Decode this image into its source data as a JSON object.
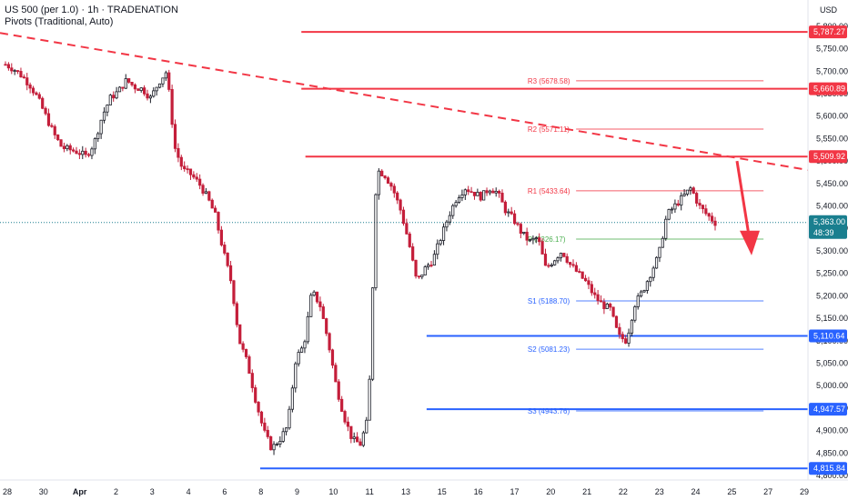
{
  "header": {
    "title": "US 500 (per 1.0) · 1h · TRADENATION",
    "indicator": "Pivots (Traditional, Auto)",
    "currency": "USD"
  },
  "colors": {
    "resistance": "#f23645",
    "support": "#2962ff",
    "pivot": "#4caf50",
    "trendline": "#f23645",
    "arrow": "#f23645",
    "bull": "#1b1d27",
    "bear": "#c41e3a",
    "last_price_label": "#1a7f8f",
    "axis_text": "#131722"
  },
  "chart_data": {
    "type": "candlestick",
    "ylim": [
      4790,
      5830
    ],
    "y_ticks": [
      "5,800.00",
      "5,750.00",
      "5,700.00",
      "5,650.00",
      "5,600.00",
      "5,550.00",
      "5,500.00",
      "5,450.00",
      "5,400.00",
      "5,350.00",
      "5,300.00",
      "5,250.00",
      "5,200.00",
      "5,150.00",
      "5,100.00",
      "5,050.00",
      "5,000.00",
      "4,950.00",
      "4,900.00",
      "4,850.00",
      "4,800.00"
    ],
    "y_tick_values": [
      5800,
      5750,
      5700,
      5650,
      5600,
      5550,
      5500,
      5450,
      5400,
      5350,
      5300,
      5250,
      5200,
      5150,
      5100,
      5050,
      5000,
      4950,
      4900,
      4850,
      4800
    ],
    "x_tick_labels": [
      "28",
      "30",
      "Apr",
      "2",
      "3",
      "4",
      "6",
      "8",
      "9",
      "10",
      "11",
      "13",
      "15",
      "16",
      "17",
      "20",
      "21",
      "22",
      "23",
      "24",
      "25",
      "27",
      "29"
    ],
    "levels": [
      {
        "label": "5,787.27",
        "value": 5787.27,
        "kind": "resistance"
      },
      {
        "label": "5,660.89",
        "value": 5660.89,
        "kind": "resistance"
      },
      {
        "label": "5,509.92",
        "value": 5509.92,
        "kind": "resistance"
      },
      {
        "label": "5,110.64",
        "value": 5110.64,
        "kind": "support"
      },
      {
        "label": "4,947.57",
        "value": 4947.57,
        "kind": "support"
      },
      {
        "label": "4,815.84",
        "value": 4815.84,
        "kind": "support"
      }
    ],
    "pivots": [
      {
        "label": "R3 (5678.58)",
        "value": 5678.58,
        "kind": "resistance"
      },
      {
        "label": "R2 (5571.11)",
        "value": 5571.11,
        "kind": "resistance"
      },
      {
        "label": "R1 (5433.64)",
        "value": 5433.64,
        "kind": "resistance"
      },
      {
        "label": "P (5326.17)",
        "value": 5326.17,
        "kind": "pivot"
      },
      {
        "label": "S1 (5188.70)",
        "value": 5188.7,
        "kind": "support"
      },
      {
        "label": "S2 (5081.23)",
        "value": 5081.23,
        "kind": "support"
      },
      {
        "label": "S3 (4943.76)",
        "value": 4943.76,
        "kind": "support"
      }
    ],
    "last_price": {
      "value": 5363.0,
      "label": "5,363.00",
      "countdown": "48:39"
    },
    "trendline": {
      "from": 5785,
      "to": 5480
    },
    "price_path": [
      5715,
      5705,
      5690,
      5670,
      5640,
      5600,
      5560,
      5530,
      5525,
      5520,
      5510,
      5540,
      5600,
      5640,
      5655,
      5680,
      5665,
      5660,
      5640,
      5675,
      5700,
      5530,
      5480,
      5470,
      5450,
      5420,
      5380,
      5300,
      5230,
      5100,
      5050,
      4970,
      4900,
      4860,
      4880,
      4910,
      5060,
      5090,
      5210,
      5180,
      5100,
      5000,
      4930,
      4880,
      4870,
      4930,
      5480,
      5470,
      5440,
      5390,
      5320,
      5230,
      5260,
      5280,
      5330,
      5380,
      5420,
      5440,
      5430,
      5420,
      5440,
      5430,
      5390,
      5370,
      5340,
      5320,
      5330,
      5260,
      5280,
      5300,
      5270,
      5250,
      5230,
      5200,
      5180,
      5170,
      5110,
      5100,
      5180,
      5210,
      5250,
      5290,
      5380,
      5400,
      5420,
      5440,
      5400,
      5380,
      5363
    ]
  }
}
